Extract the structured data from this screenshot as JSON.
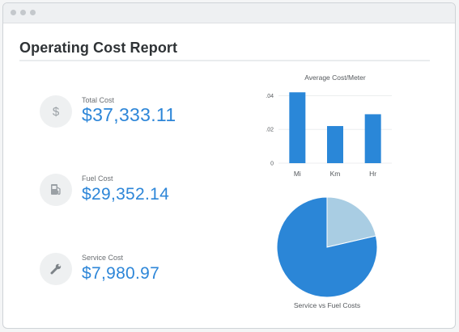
{
  "page": {
    "title": "Operating Cost Report"
  },
  "metrics": [
    {
      "label": "Total Cost",
      "value": "$37,333.11",
      "icon": "dollar-icon"
    },
    {
      "label": "Fuel Cost",
      "value": "$29,352.14",
      "icon": "fuel-pump-icon"
    },
    {
      "label": "Service Cost",
      "value": "$7,980.97",
      "icon": "wrench-icon"
    }
  ],
  "colors": {
    "accent": "#2d86d8",
    "bar": "#2a87d8",
    "pie_primary": "#2b86d7",
    "pie_secondary": "#a9cde3"
  },
  "chart_data": [
    {
      "type": "bar",
      "title": "Average Cost/Meter",
      "categories": [
        "Mi",
        "Km",
        "Hr"
      ],
      "values": [
        0.042,
        0.022,
        0.029
      ],
      "ylim": [
        0,
        0.045
      ],
      "yticks": [
        0,
        0.02,
        0.04
      ],
      "ytick_labels": [
        "0",
        ".02",
        ".04"
      ],
      "grid": true,
      "xlabel": "",
      "ylabel": ""
    },
    {
      "type": "pie",
      "title": "Service vs Fuel Costs",
      "values": [
        29352.14,
        7980.97
      ],
      "colors": [
        "#2b86d7",
        "#a9cde3"
      ]
    }
  ]
}
